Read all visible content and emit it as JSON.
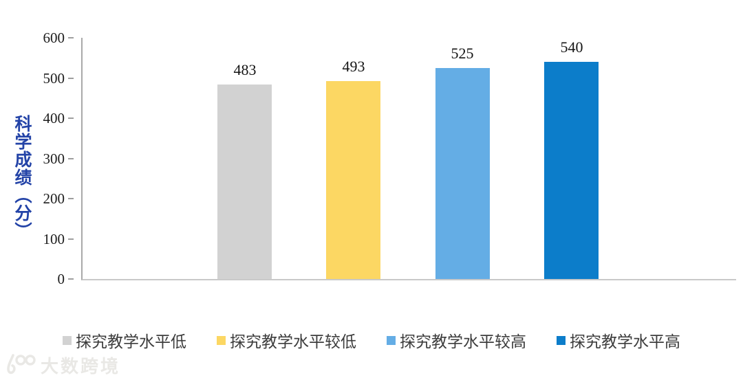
{
  "chart_data": {
    "type": "bar",
    "title": "",
    "xlabel": "",
    "ylabel": "科学成绩（分）",
    "ylim": [
      0,
      600
    ],
    "ytick_interval": 100,
    "yticks": [
      0,
      100,
      200,
      300,
      400,
      500,
      600
    ],
    "grid": false,
    "legend_position": "bottom",
    "value_labels_shown": true,
    "categories": [
      "探究教学水平低",
      "探究教学水平较低",
      "探究教学水平较高",
      "探究教学水平高"
    ],
    "values": [
      483,
      493,
      525,
      540
    ],
    "bar_colors": [
      "#D2D2D2",
      "#FCD763",
      "#64ADE5",
      "#0C7DCA"
    ]
  },
  "watermark": {
    "text": "大数跨境",
    "logo": "100-rings-logo"
  },
  "style_colors": {
    "background": "#FFFFFF",
    "ylabel_blue": "#2343A7",
    "axis_line": "#A9A9A9",
    "baseline": "#C9C9C9",
    "tick_mark": "#9E9E9E",
    "tick_label": "#1C1C1C",
    "value_label": "#141414",
    "legend_text": "#3C3C3C",
    "watermark": "#E9E8E5"
  }
}
